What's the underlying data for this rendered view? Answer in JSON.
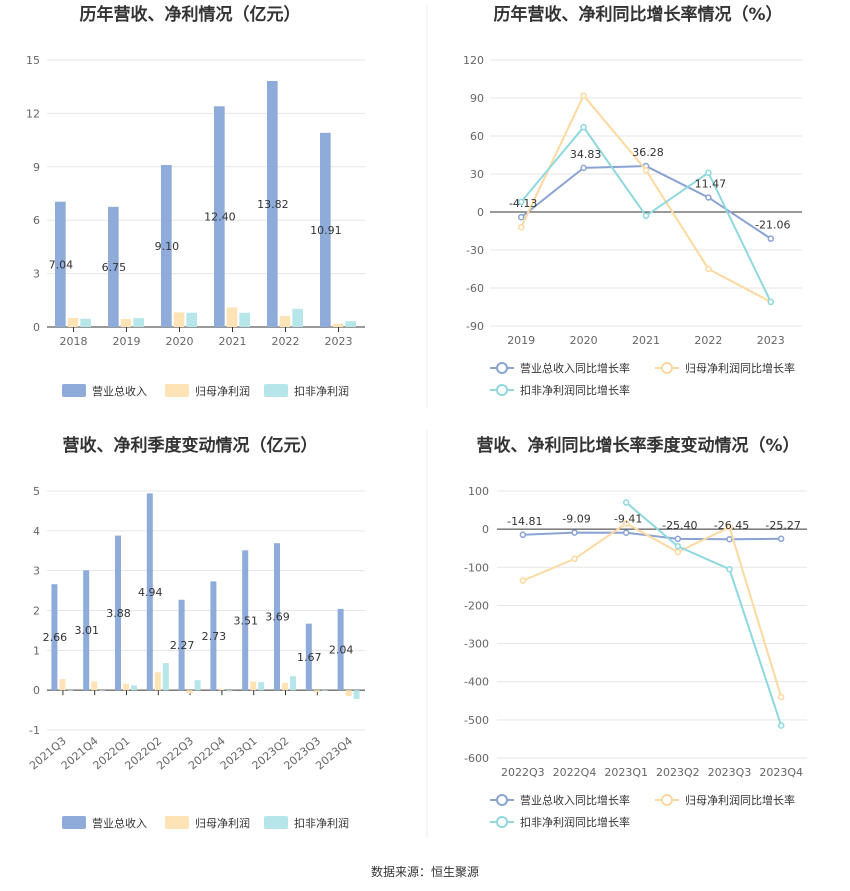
{
  "source": "数据来源：恒生聚源",
  "colors": {
    "revenue": "#8eabd9",
    "netProfit": "#fde3b5",
    "deductedProfit": "#b6e5ea",
    "revenueLine": "#8aa3d2",
    "netLine": "#fcd9a0",
    "deductedLine": "#8ed8de"
  },
  "chart_data": [
    {
      "type": "bar",
      "title": "历年营收、净利情况（亿元）",
      "categories": [
        "2018",
        "2019",
        "2020",
        "2021",
        "2022",
        "2023"
      ],
      "series": [
        {
          "name": "营业总收入",
          "values": [
            7.04,
            6.75,
            9.1,
            12.4,
            13.82,
            10.91
          ]
        },
        {
          "name": "归母净利润",
          "values": [
            0.5,
            0.45,
            0.82,
            1.1,
            0.62,
            0.18
          ]
        },
        {
          "name": "扣非净利润",
          "values": [
            0.46,
            0.5,
            0.8,
            0.8,
            1.02,
            0.32
          ]
        }
      ],
      "data_labels": [
        "7.04",
        "6.75",
        "9.10",
        "12.40",
        "13.82",
        "10.91"
      ],
      "yticks": [
        "0",
        "3",
        "6",
        "9",
        "12",
        "15"
      ],
      "ylim": [
        0,
        15
      ],
      "grid": true,
      "legend": "bottom"
    },
    {
      "type": "line",
      "title": "历年营收、净利同比增长率情况（%）",
      "categories": [
        "2019",
        "2020",
        "2021",
        "2022",
        "2023"
      ],
      "series": [
        {
          "name": "营业总收入同比增长率",
          "values": [
            -4.13,
            34.83,
            36.28,
            11.47,
            -21.06
          ]
        },
        {
          "name": "归母净利润同比增长率",
          "values": [
            -12,
            92,
            33,
            -45,
            -71
          ]
        },
        {
          "name": "扣非净利润同比增长率",
          "values": [
            8,
            67,
            -3,
            31,
            -71
          ]
        }
      ],
      "data_labels": [
        "-4.13",
        "34.83",
        "36.28",
        "11.47",
        "-21.06"
      ],
      "yticks": [
        "-90",
        "-60",
        "-30",
        "0",
        "30",
        "60",
        "90",
        "120"
      ],
      "ylim": [
        -90,
        120
      ],
      "grid": true,
      "legend": "bottom"
    },
    {
      "type": "bar",
      "title": "营收、净利季度变动情况（亿元）",
      "categories": [
        "2021Q3",
        "2021Q4",
        "2022Q1",
        "2022Q2",
        "2022Q3",
        "2022Q4",
        "2023Q1",
        "2023Q2",
        "2023Q3",
        "2023Q4"
      ],
      "series": [
        {
          "name": "营业总收入",
          "values": [
            2.66,
            3.01,
            3.88,
            4.94,
            2.27,
            2.73,
            3.51,
            3.69,
            1.67,
            2.04
          ]
        },
        {
          "name": "归母净利润",
          "values": [
            0.28,
            0.22,
            0.16,
            0.45,
            -0.08,
            0.03,
            0.22,
            0.18,
            -0.05,
            -0.15
          ]
        },
        {
          "name": "扣非净利润",
          "values": [
            0.0,
            0.0,
            0.12,
            0.68,
            0.25,
            -0.03,
            0.2,
            0.35,
            0.0,
            -0.22
          ]
        }
      ],
      "data_labels": [
        "2.66",
        "3.01",
        "3.88",
        "4.94",
        "2.27",
        "2.73",
        "3.51",
        "3.69",
        "1.67",
        "2.04"
      ],
      "yticks": [
        "-1",
        "0",
        "1",
        "2",
        "3",
        "4",
        "5"
      ],
      "ylim": [
        -1,
        5
      ],
      "grid": true,
      "legend": "bottom"
    },
    {
      "type": "line",
      "title": "营收、净利同比增长率季度变动情况（%）",
      "categories": [
        "2022Q3",
        "2022Q4",
        "2023Q1",
        "2023Q2",
        "2023Q3",
        "2023Q4"
      ],
      "series": [
        {
          "name": "营业总收入同比增长率",
          "values": [
            -14.81,
            -9.09,
            -9.41,
            -25.4,
            -26.45,
            -25.27
          ]
        },
        {
          "name": "归母净利润同比增长率",
          "values": [
            -135,
            -78,
            15,
            -60,
            5,
            -440
          ]
        },
        {
          "name": "扣非净利润同比增长率",
          "values": [
            null,
            null,
            70,
            -45,
            -105,
            -515
          ]
        }
      ],
      "data_labels": [
        "-14.81",
        "-9.09",
        "-9.41",
        "-25.40",
        "-26.45",
        "-25.27"
      ],
      "yticks": [
        "-600",
        "-500",
        "-400",
        "-300",
        "-200",
        "-100",
        "0",
        "100"
      ],
      "ylim": [
        -600,
        100
      ],
      "grid": true,
      "legend": "bottom"
    }
  ]
}
